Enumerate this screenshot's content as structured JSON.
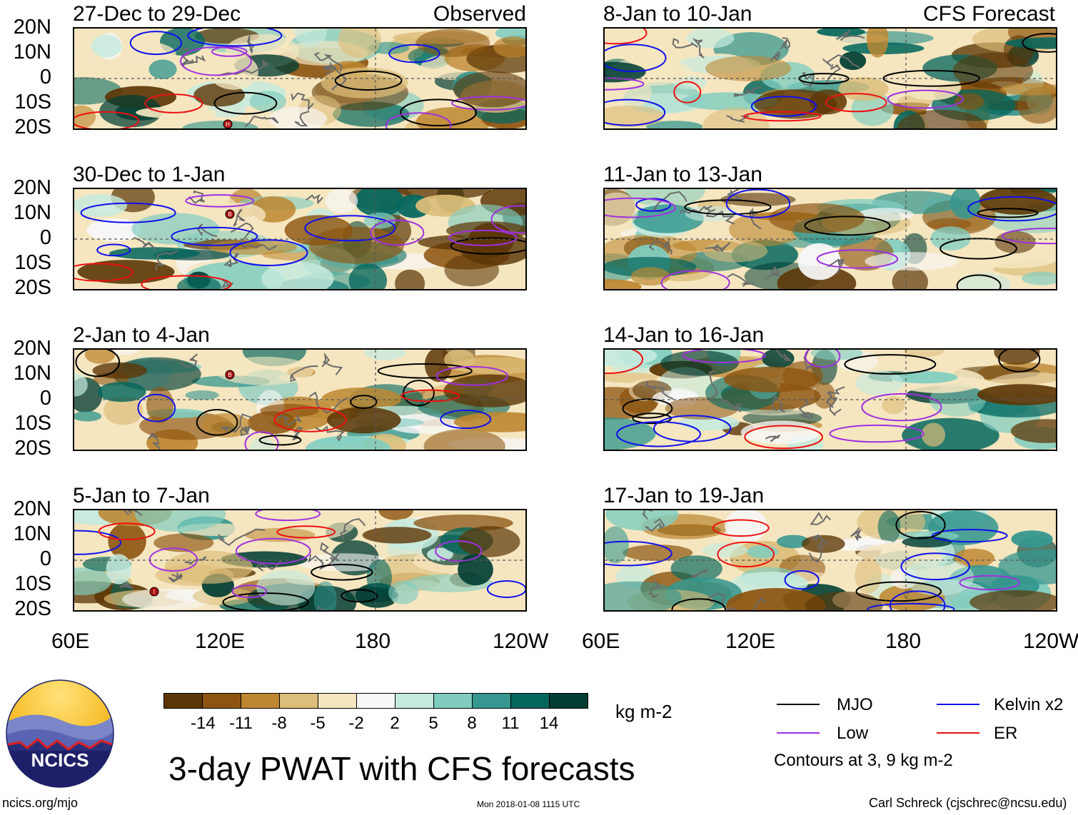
{
  "panels_observed": [
    {
      "title": "27-Dec to 29-Dec",
      "tag": "Observed"
    },
    {
      "title": "30-Dec to 1-Jan",
      "tag": ""
    },
    {
      "title": "2-Jan to 4-Jan",
      "tag": ""
    },
    {
      "title": "5-Jan to 7-Jan",
      "tag": ""
    }
  ],
  "panels_forecast": [
    {
      "title": "8-Jan to 10-Jan",
      "tag": "CFS Forecast"
    },
    {
      "title": "11-Jan to 13-Jan",
      "tag": ""
    },
    {
      "title": "14-Jan to 16-Jan",
      "tag": ""
    },
    {
      "title": "17-Jan to 19-Jan",
      "tag": ""
    }
  ],
  "lat_labels": [
    "20N",
    "10N",
    "0",
    "10S",
    "20S"
  ],
  "lon_labels": [
    "60E",
    "120E",
    "180",
    "120W"
  ],
  "storm_markers": {
    "p0": "H",
    "p1": "B",
    "p2": "B",
    "p3": "I"
  },
  "colorbar": {
    "colors": [
      "#5c3606",
      "#8c5410",
      "#bd8731",
      "#dcbd79",
      "#f5e6c0",
      "#f7f7f7",
      "#c5eade",
      "#80cdc0",
      "#35978f",
      "#04675d",
      "#003d33"
    ],
    "ticks": [
      "-14",
      "-11",
      "-8",
      "-5",
      "-2",
      "2",
      "5",
      "8",
      "11",
      "14"
    ],
    "unit": "kg m-2"
  },
  "legend": {
    "items": [
      {
        "label": "MJO",
        "color": "#000000"
      },
      {
        "label": "Kelvin x2",
        "color": "#1010ee"
      },
      {
        "label": "Low",
        "color": "#a030e0"
      },
      {
        "label": "ER",
        "color": "#ee1010"
      }
    ],
    "note": "Contours at 3, 9 kg m-2"
  },
  "main_title": "3-day PWAT with CFS forecasts",
  "logo_text": "NCICS",
  "footer": {
    "left": "ncics.org/mjo",
    "center": "Mon 2018-01-08 1115 UTC",
    "right": "Carl Schreck (cjschrec@ncsu.edu)"
  }
}
